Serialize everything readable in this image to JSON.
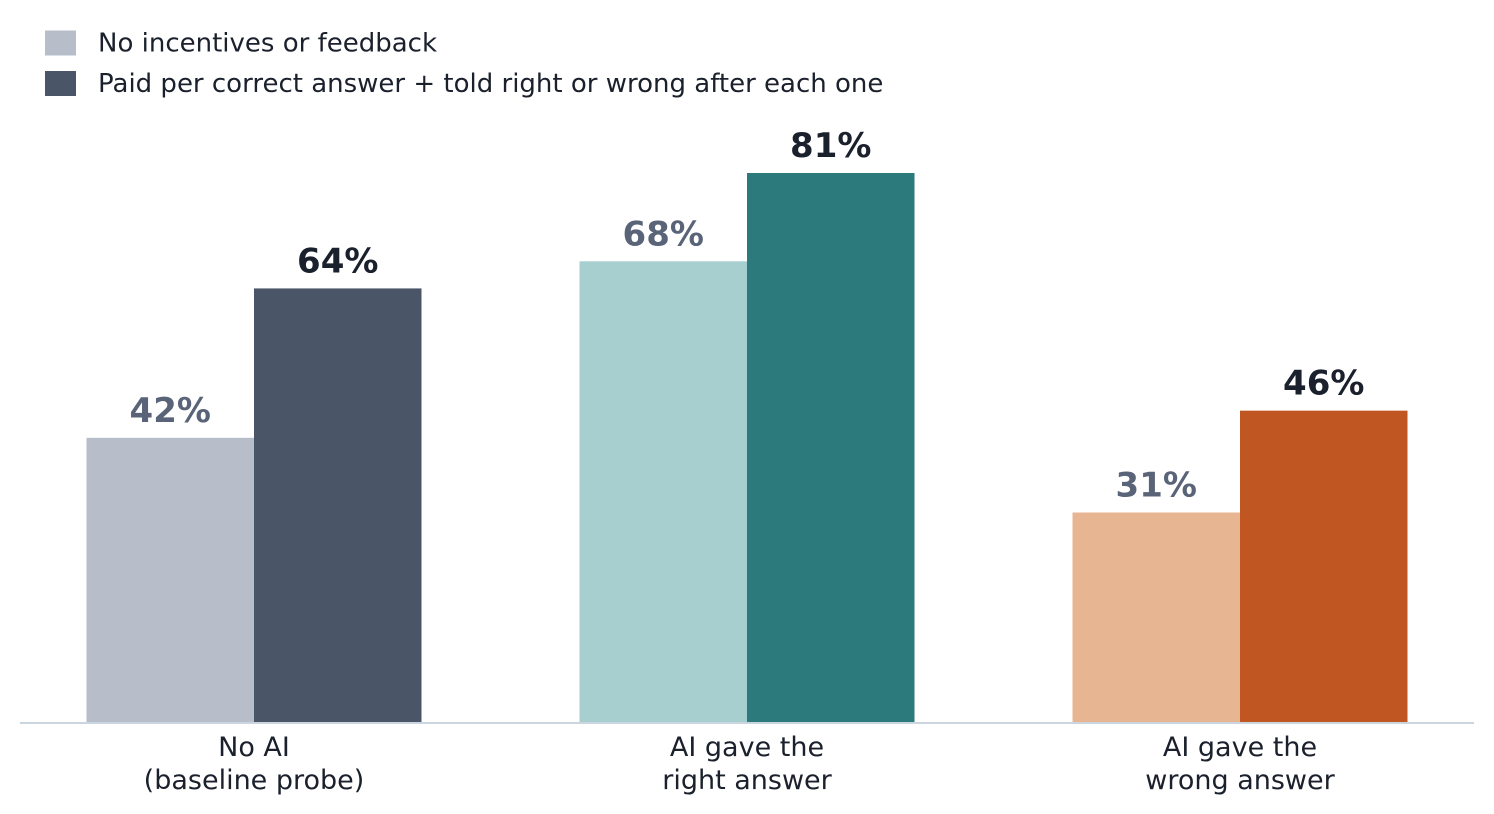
{
  "chart_data": {
    "type": "bar",
    "categories": [
      "No AI\n(baseline probe)",
      "AI gave the\nright answer",
      "AI gave the\nwrong answer"
    ],
    "series": [
      {
        "name": "No incentives or feedback",
        "color": "#b7bec9",
        "colors": [
          "#b7bec9",
          "#a8cfcf",
          "#e8b593"
        ],
        "values": [
          42,
          68,
          31
        ],
        "value_labels": [
          "42%",
          "68%",
          "31%"
        ]
      },
      {
        "name": "Paid per correct answer + told right or wrong after each one",
        "color": "#4a5568",
        "colors": [
          "#4a5568",
          "#2c7a7b",
          "#c05621"
        ],
        "values": [
          64,
          81,
          46
        ],
        "value_labels": [
          "64%",
          "81%",
          "46%"
        ]
      }
    ]
  }
}
